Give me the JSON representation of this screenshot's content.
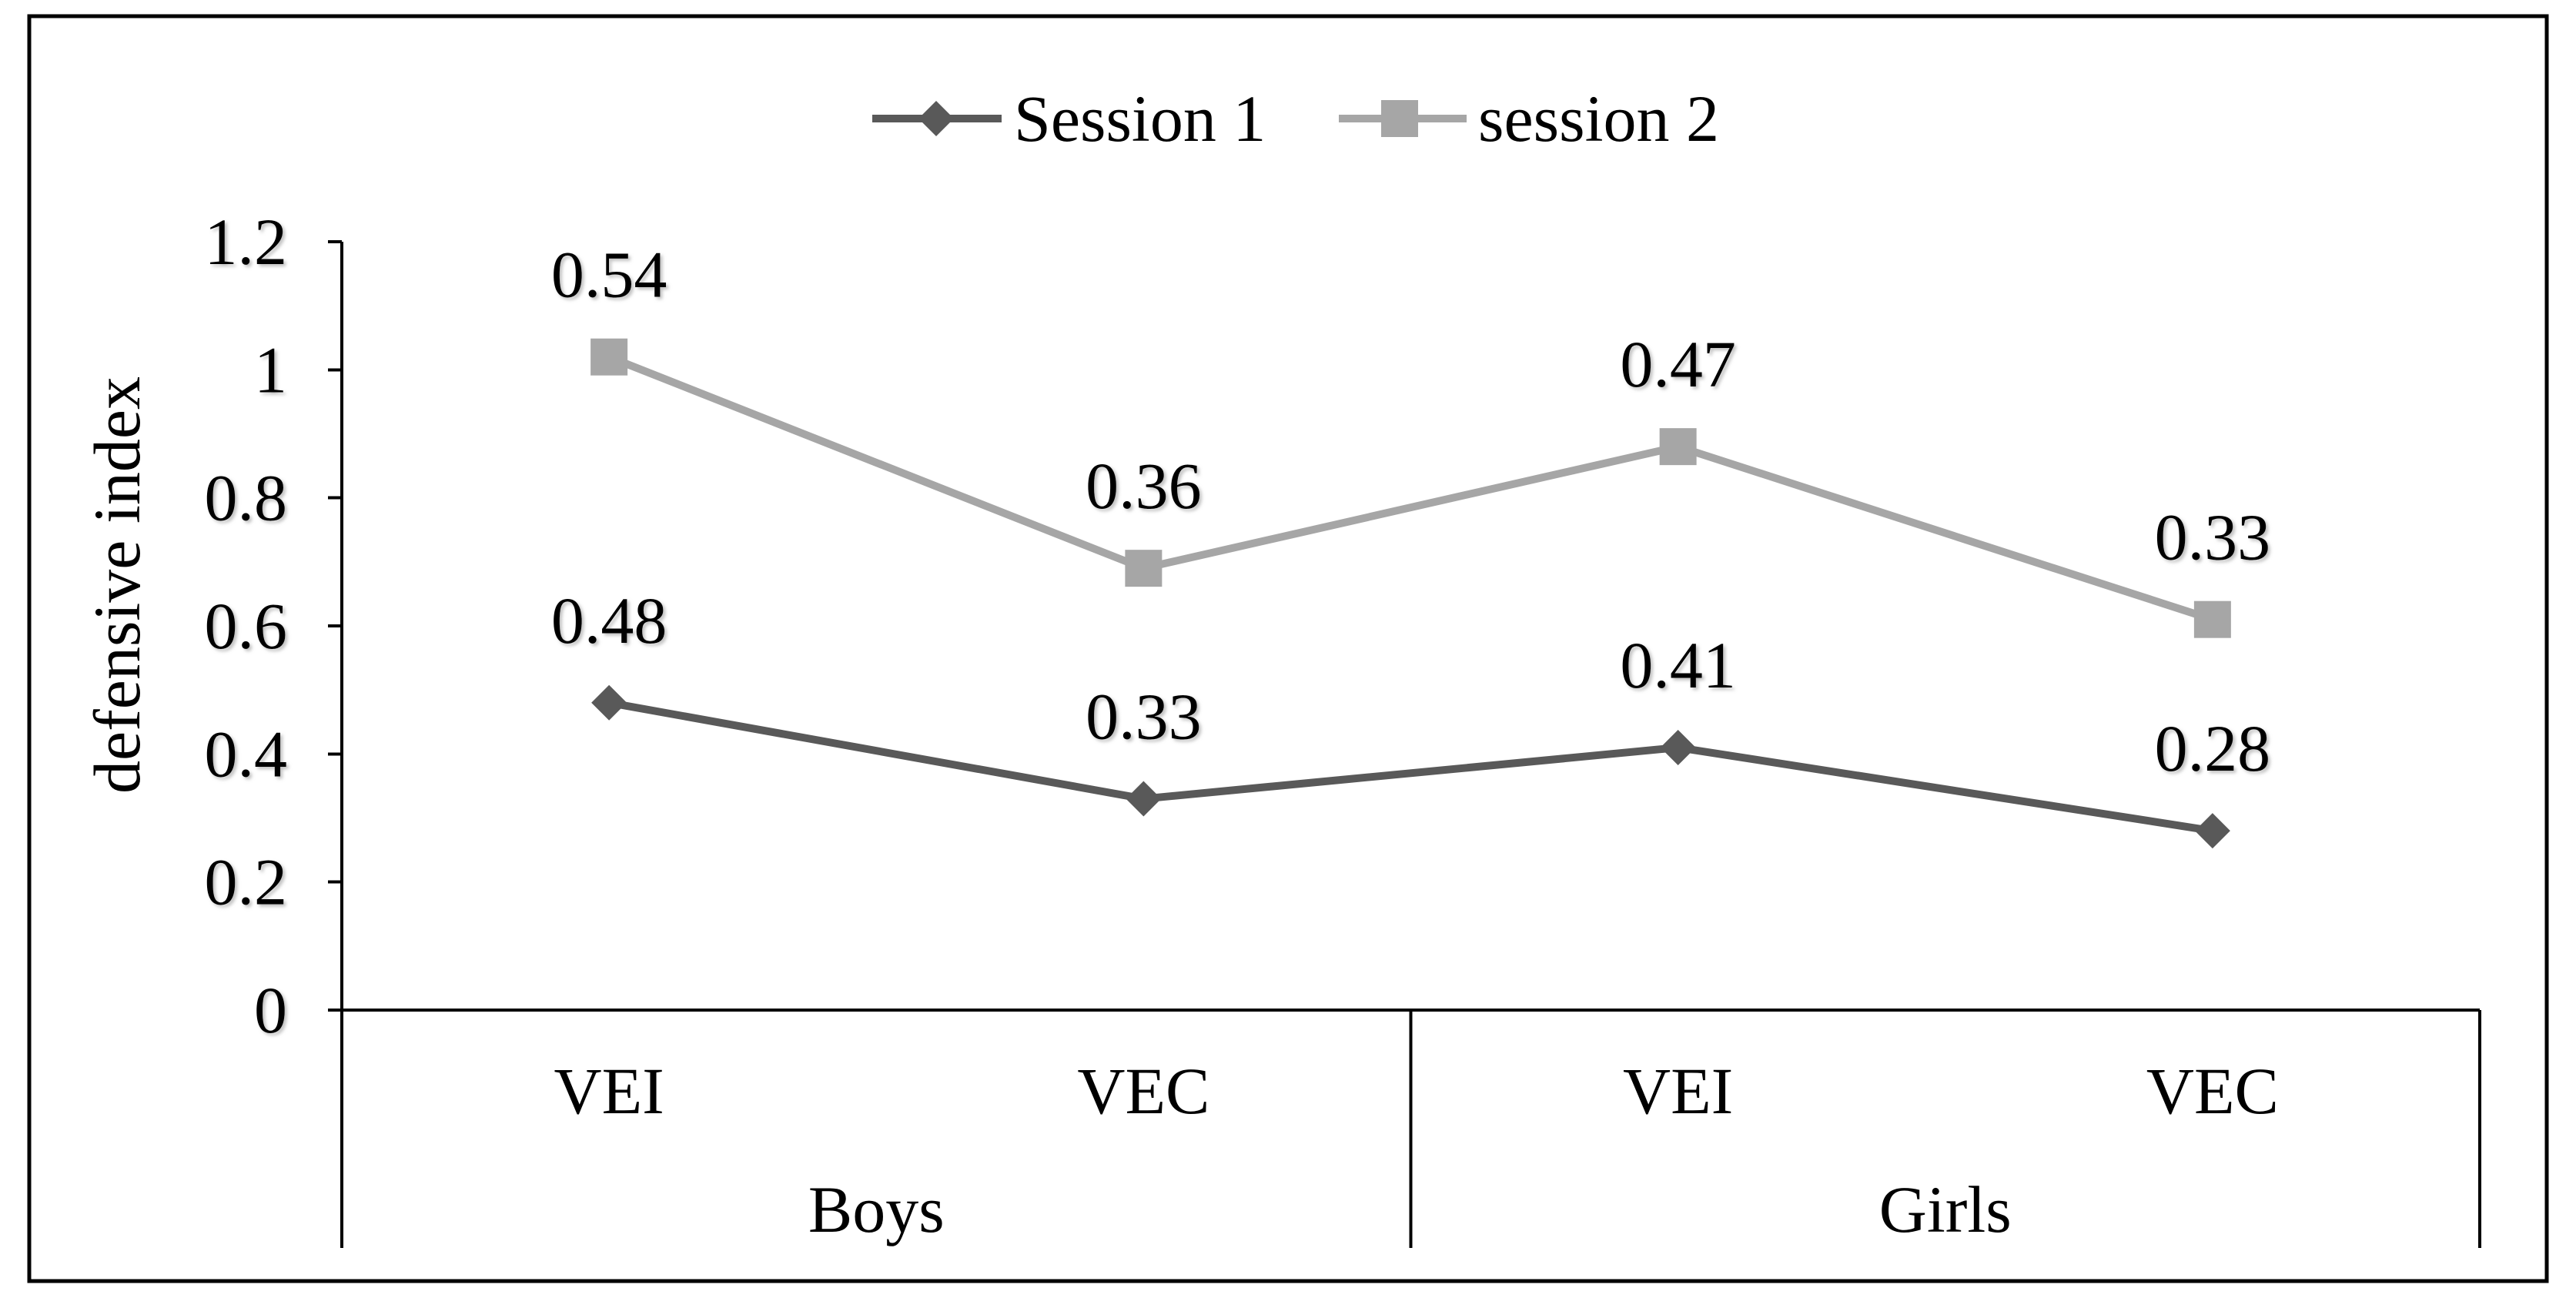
{
  "chart_data": {
    "type": "line",
    "stacked": true,
    "title": "",
    "xlabel": "",
    "ylabel": "defensive index",
    "ylim": [
      0,
      1.2
    ],
    "yticks": [
      0,
      0.2,
      0.4,
      0.6,
      0.8,
      1,
      1.2
    ],
    "grid": false,
    "legend": "top",
    "groups": [
      {
        "name": "Boys",
        "categories": [
          "VEI",
          "VEC"
        ]
      },
      {
        "name": "Girls",
        "categories": [
          "VEI",
          "VEC"
        ]
      }
    ],
    "series": [
      {
        "name": "Session 1",
        "color": "#595959",
        "marker": "diamond",
        "values": [
          0.48,
          0.33,
          0.41,
          0.28
        ]
      },
      {
        "name": "session 2",
        "color": "#A6A6A6",
        "marker": "square",
        "values": [
          0.54,
          0.36,
          0.47,
          0.33
        ]
      }
    ]
  }
}
